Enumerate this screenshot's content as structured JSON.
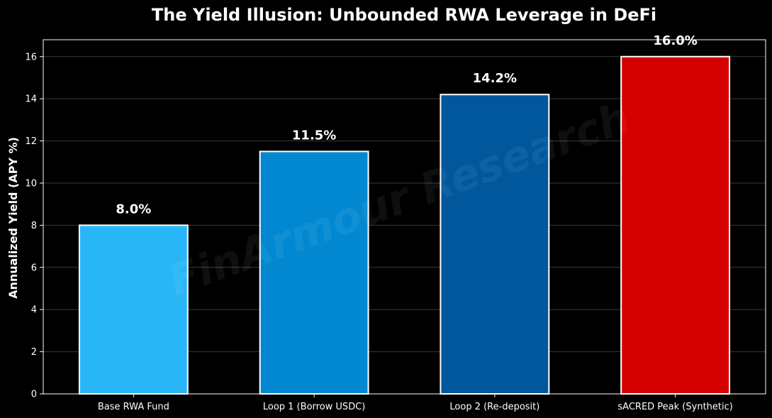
{
  "chart_data": {
    "type": "bar",
    "title": "The Yield Illusion: Unbounded RWA Leverage in DeFi",
    "xlabel": "",
    "ylabel": "Annualized Yield (APY %)",
    "categories": [
      "Base RWA Fund",
      "Loop 1 (Borrow USDC)",
      "Loop 2 (Re-deposit)",
      "sACRED Peak (Synthetic)"
    ],
    "values": [
      8.0,
      11.5,
      14.2,
      16.0
    ],
    "data_labels": [
      "8.0%",
      "11.5%",
      "14.2%",
      "16.0%"
    ],
    "bar_colors": [
      "#29B6F6",
      "#0288D1",
      "#01579B",
      "#D50000"
    ],
    "bar_edge_color": "#FFFFFF",
    "ylim": [
      0,
      16.8
    ],
    "yticks": [
      0,
      2,
      4,
      6,
      8,
      10,
      12,
      14,
      16
    ],
    "grid": "horizontal",
    "background": "#000000",
    "watermark": "FinArmour Research"
  }
}
